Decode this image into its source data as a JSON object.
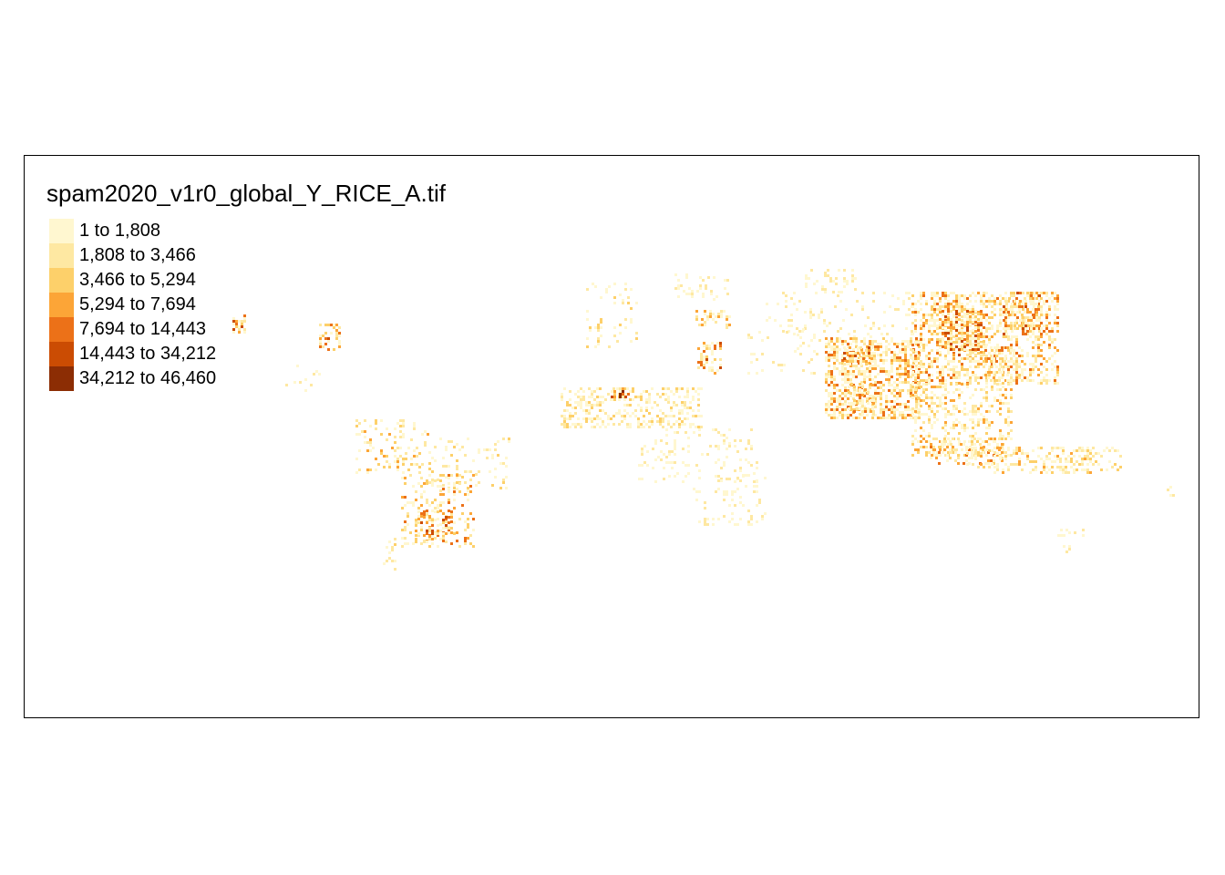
{
  "map": {
    "legend": {
      "title": "spam2020_v1r0_global_Y_RICE_A.tif",
      "classes": [
        {
          "label": "1 to 1,808",
          "color": "#fff7d0"
        },
        {
          "label": "1,808 to 3,466",
          "color": "#fee8a2"
        },
        {
          "label": "3,466 to 5,294",
          "color": "#fdd06a"
        },
        {
          "label": "5,294 to 7,694",
          "color": "#fca537"
        },
        {
          "label": "7,694 to 14,443",
          "color": "#ec7118"
        },
        {
          "label": "14,443 to 34,212",
          "color": "#cb4c03"
        },
        {
          "label": "34,212 to 46,460",
          "color": "#8c2d04"
        }
      ]
    }
  }
}
